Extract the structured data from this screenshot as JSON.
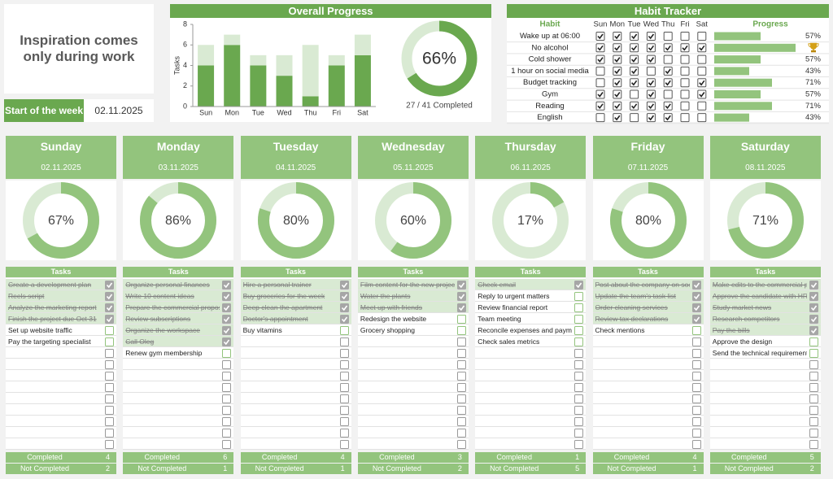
{
  "quote": "Inspiration comes only during work",
  "week_start": {
    "label": "Start of the week",
    "date": "02.11.2025"
  },
  "chart_data": {
    "type": "bar",
    "stacked": true,
    "title": "Overall Progress",
    "y_label": "Tasks",
    "categories": [
      "Sun",
      "Mon",
      "Tue",
      "Wed",
      "Thu",
      "Fri",
      "Sat"
    ],
    "series": [
      {
        "color": "#6aa84f",
        "values": [
          4,
          6,
          4,
          3,
          1,
          4,
          5
        ]
      },
      {
        "color": "#d9ead3",
        "values": [
          2,
          1,
          1,
          2,
          5,
          1,
          2
        ]
      }
    ],
    "ylim": [
      0,
      8
    ],
    "yticks": [
      0,
      2,
      4,
      6,
      8
    ]
  },
  "overall_donut": {
    "value": 66,
    "label": "66%",
    "summary": "27 / 41 Completed"
  },
  "habits": {
    "title": "Habit Tracker",
    "header": {
      "habit": "Habit",
      "days": [
        "Sun",
        "Mon",
        "Tue",
        "Wed",
        "Thu",
        "Fri",
        "Sat"
      ],
      "progress": "Progress"
    },
    "rows": [
      {
        "name": "Wake up at 06:00",
        "checks": [
          true,
          true,
          true,
          true,
          false,
          false,
          false
        ],
        "progress": 57,
        "label": "57%"
      },
      {
        "name": "No alcohol",
        "checks": [
          true,
          true,
          true,
          true,
          true,
          true,
          true
        ],
        "progress": 100,
        "trophy": true
      },
      {
        "name": "Cold shower",
        "checks": [
          true,
          true,
          true,
          true,
          false,
          false,
          false
        ],
        "progress": 57,
        "label": "57%"
      },
      {
        "name": "1 hour on social media",
        "checks": [
          false,
          true,
          true,
          false,
          true,
          false,
          false
        ],
        "progress": 43,
        "label": "43%"
      },
      {
        "name": "Budget tracking",
        "checks": [
          false,
          true,
          true,
          true,
          true,
          false,
          true
        ],
        "progress": 71,
        "label": "71%"
      },
      {
        "name": "Gym",
        "checks": [
          true,
          true,
          false,
          true,
          false,
          false,
          true
        ],
        "progress": 57,
        "label": "57%"
      },
      {
        "name": "Reading",
        "checks": [
          true,
          true,
          true,
          true,
          true,
          false,
          false
        ],
        "progress": 71,
        "label": "71%"
      },
      {
        "name": "English",
        "checks": [
          false,
          true,
          false,
          true,
          true,
          false,
          false
        ],
        "progress": 43,
        "label": "43%"
      }
    ]
  },
  "days": [
    {
      "name": "Sunday",
      "date": "02.11.2025",
      "percent": 67,
      "percent_label": "67%",
      "tasks_title": "Tasks",
      "tasks": [
        {
          "text": "Create a development plan",
          "done": true
        },
        {
          "text": "Reels script",
          "done": true
        },
        {
          "text": "Analyze the marketing report",
          "done": true
        },
        {
          "text": "Finish the project due Oct 31",
          "done": true
        },
        {
          "text": "Set up website traffic",
          "done": false
        },
        {
          "text": "Pay the targeting specialist",
          "done": false
        }
      ],
      "completed_label": "Completed",
      "completed": 4,
      "not_completed_label": "Not Completed",
      "not_completed": 2
    },
    {
      "name": "Monday",
      "date": "03.11.2025",
      "percent": 86,
      "percent_label": "86%",
      "tasks_title": "Tasks",
      "tasks": [
        {
          "text": "Organize personal finances",
          "done": true
        },
        {
          "text": "Write 10 content ideas",
          "done": true
        },
        {
          "text": "Prepare the commercial propos",
          "done": true
        },
        {
          "text": "Review subscriptions",
          "done": true
        },
        {
          "text": "Organize the workspace",
          "done": true
        },
        {
          "text": "Call Oleg",
          "done": true
        },
        {
          "text": "Renew gym membership",
          "done": false
        }
      ],
      "completed_label": "Completed",
      "completed": 6,
      "not_completed_label": "Not Completed",
      "not_completed": 1
    },
    {
      "name": "Tuesday",
      "date": "04.11.2025",
      "percent": 80,
      "percent_label": "80%",
      "tasks_title": "Tasks",
      "tasks": [
        {
          "text": "Hire a personal trainer",
          "done": true
        },
        {
          "text": "Buy groceries for the week",
          "done": true
        },
        {
          "text": "Deep clean the apartment",
          "done": true
        },
        {
          "text": "Doctor's appointment",
          "done": true
        },
        {
          "text": "Buy vitamins",
          "done": false
        }
      ],
      "completed_label": "Completed",
      "completed": 4,
      "not_completed_label": "Not Completed",
      "not_completed": 1
    },
    {
      "name": "Wednesday",
      "date": "05.11.2025",
      "percent": 60,
      "percent_label": "60%",
      "tasks_title": "Tasks",
      "tasks": [
        {
          "text": "Film content for the new project",
          "done": true
        },
        {
          "text": "Water the plants",
          "done": true
        },
        {
          "text": "Meet up with friends",
          "done": true
        },
        {
          "text": "Redesign the website",
          "done": false
        },
        {
          "text": "Grocery shopping",
          "done": false
        }
      ],
      "completed_label": "Completed",
      "completed": 3,
      "not_completed_label": "Not Completed",
      "not_completed": 2
    },
    {
      "name": "Thursday",
      "date": "06.11.2025",
      "percent": 17,
      "percent_label": "17%",
      "tasks_title": "Tasks",
      "tasks": [
        {
          "text": "Check email",
          "done": true
        },
        {
          "text": "Reply to urgent matters",
          "done": false
        },
        {
          "text": "Review financial report",
          "done": false
        },
        {
          "text": "Team meeting",
          "done": false
        },
        {
          "text": "Reconcile expenses and payme",
          "done": false
        },
        {
          "text": "Check sales metrics",
          "done": false
        }
      ],
      "completed_label": "Completed",
      "completed": 1,
      "not_completed_label": "Not Completed",
      "not_completed": 5
    },
    {
      "name": "Friday",
      "date": "07.11.2025",
      "percent": 80,
      "percent_label": "80%",
      "tasks_title": "Tasks",
      "tasks": [
        {
          "text": "Post about the company on social",
          "done": true
        },
        {
          "text": "Update the team's task list",
          "done": true
        },
        {
          "text": "Order cleaning services",
          "done": true
        },
        {
          "text": "Review tax declarations",
          "done": true
        },
        {
          "text": "Check mentions",
          "done": false
        }
      ],
      "completed_label": "Completed",
      "completed": 4,
      "not_completed_label": "Not Completed",
      "not_completed": 1
    },
    {
      "name": "Saturday",
      "date": "08.11.2025",
      "percent": 71,
      "percent_label": "71%",
      "tasks_title": "Tasks",
      "tasks": [
        {
          "text": "Make edits to the commercial p",
          "done": true
        },
        {
          "text": "Approve the candidate with HR",
          "done": true
        },
        {
          "text": "Study market news",
          "done": true
        },
        {
          "text": "Research competitors",
          "done": true
        },
        {
          "text": "Pay the bills",
          "done": true
        },
        {
          "text": "Approve the design",
          "done": false
        },
        {
          "text": "Send the technical requirements",
          "done": false
        }
      ],
      "completed_label": "Completed",
      "completed": 5,
      "not_completed_label": "Not Completed",
      "not_completed": 2
    }
  ]
}
